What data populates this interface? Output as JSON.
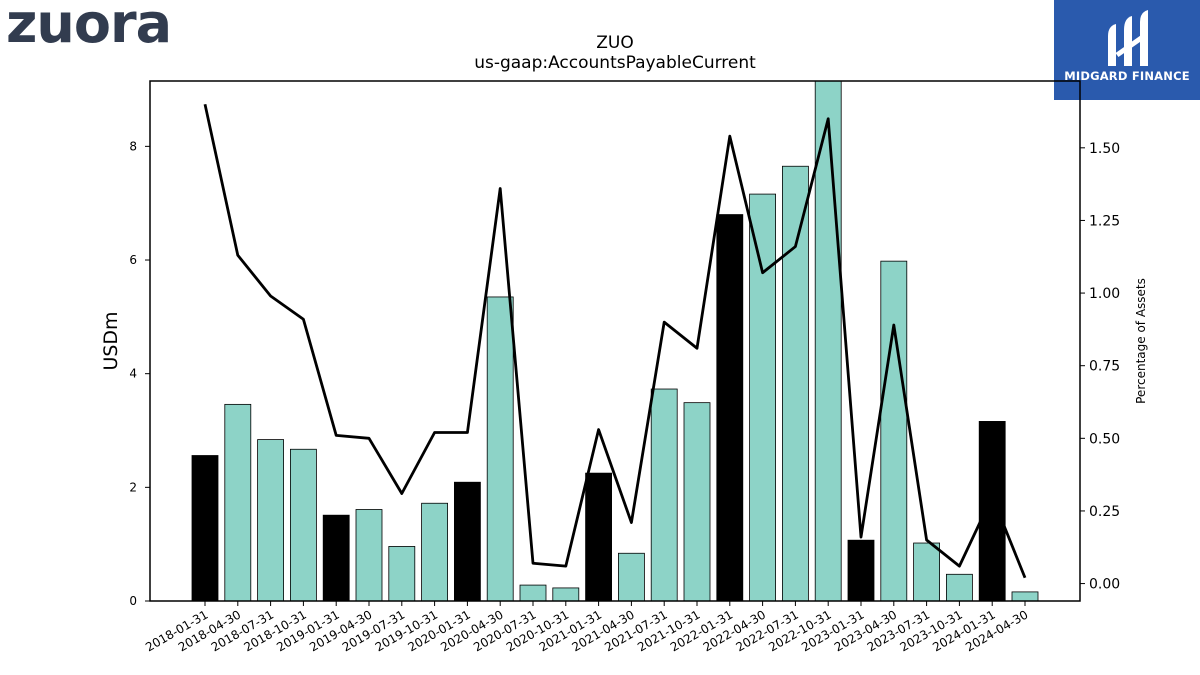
{
  "branding": {
    "company_logo_text": "zuora",
    "publisher_logo_text": "MIDGARD FINANCE",
    "publisher_bg": "#2a5aad",
    "company_logo_color": "#323c4f"
  },
  "chart_data": {
    "type": "bar",
    "title": "ZUO",
    "subtitle": "us-gaap:AccountsPayableCurrent",
    "ylabel": "USDm",
    "y2label": "Percentage of Assets",
    "xlabel": "",
    "categories": [
      "2018-01-31",
      "2018-04-30",
      "2018-07-31",
      "2018-10-31",
      "2019-01-31",
      "2019-04-30",
      "2019-07-31",
      "2019-10-31",
      "2020-01-31",
      "2020-04-30",
      "2020-07-31",
      "2020-10-31",
      "2021-01-31",
      "2021-04-30",
      "2021-07-31",
      "2021-10-31",
      "2022-01-31",
      "2022-04-30",
      "2022-07-31",
      "2022-10-31",
      "2023-01-31",
      "2023-04-30",
      "2023-07-31",
      "2023-10-31",
      "2024-01-31",
      "2024-04-30"
    ],
    "series": [
      {
        "type": "bar",
        "axis": "left",
        "values": [
          2.56,
          3.46,
          2.84,
          2.67,
          1.51,
          1.61,
          0.96,
          1.72,
          2.09,
          5.35,
          0.28,
          0.23,
          2.25,
          0.84,
          3.73,
          3.49,
          6.8,
          7.16,
          7.65,
          9.3,
          1.07,
          5.98,
          1.02,
          0.47,
          3.16,
          0.16
        ],
        "fiscal_year_end_color": "#000000",
        "quarter_color": "#8dd3c7"
      },
      {
        "type": "line",
        "axis": "right",
        "values": [
          1.65,
          1.13,
          0.99,
          0.91,
          0.51,
          0.5,
          0.31,
          0.52,
          0.52,
          1.36,
          0.07,
          0.06,
          0.53,
          0.21,
          0.9,
          0.81,
          1.54,
          1.07,
          1.16,
          1.6,
          0.16,
          0.89,
          0.15,
          0.06,
          0.3,
          0.02
        ],
        "color": "#000000"
      }
    ],
    "ylim": [
      0,
      9.15
    ],
    "y2lim": [
      -0.06,
      1.73
    ],
    "yticks": [
      "0",
      "2",
      "4",
      "6",
      "8"
    ],
    "y2ticks": [
      "0.00",
      "0.25",
      "0.50",
      "0.75",
      "1.00",
      "1.25",
      "1.50"
    ],
    "grid": false,
    "legend": "none"
  }
}
